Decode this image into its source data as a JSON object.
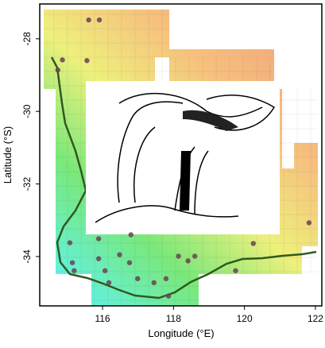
{
  "chart_data": {
    "type": "scatter",
    "x_label": "Longitude (°E)",
    "y_label": "Latitude (°S)",
    "x": [
      115.61,
      115.91,
      114.87,
      115.56,
      114.74,
      121.82,
      120.25,
      115.08,
      115.15,
      115.2,
      115.89,
      115.89,
      116.07,
      116.18,
      116.48,
      116.76,
      116.8,
      116.99,
      117.45,
      117.79,
      117.86,
      118.14,
      118.41,
      118.6,
      119.75
    ],
    "y": [
      -27.48,
      -27.48,
      -28.58,
      -28.6,
      -28.86,
      -33.07,
      -33.64,
      -33.62,
      -34.17,
      -34.39,
      -33.51,
      -34.06,
      -34.39,
      -34.72,
      -33.95,
      -34.17,
      -33.4,
      -34.61,
      -34.72,
      -34.61,
      -35.09,
      -33.99,
      -34.12,
      -33.99,
      -34.39
    ],
    "color": "#6b3f55",
    "xlim": [
      114.23,
      122.18
    ],
    "ylim": [
      -35.36,
      -27.04
    ],
    "xticks": [
      116,
      118,
      120,
      122
    ],
    "yticks": [
      -28,
      -30,
      -32,
      -34
    ]
  }
}
